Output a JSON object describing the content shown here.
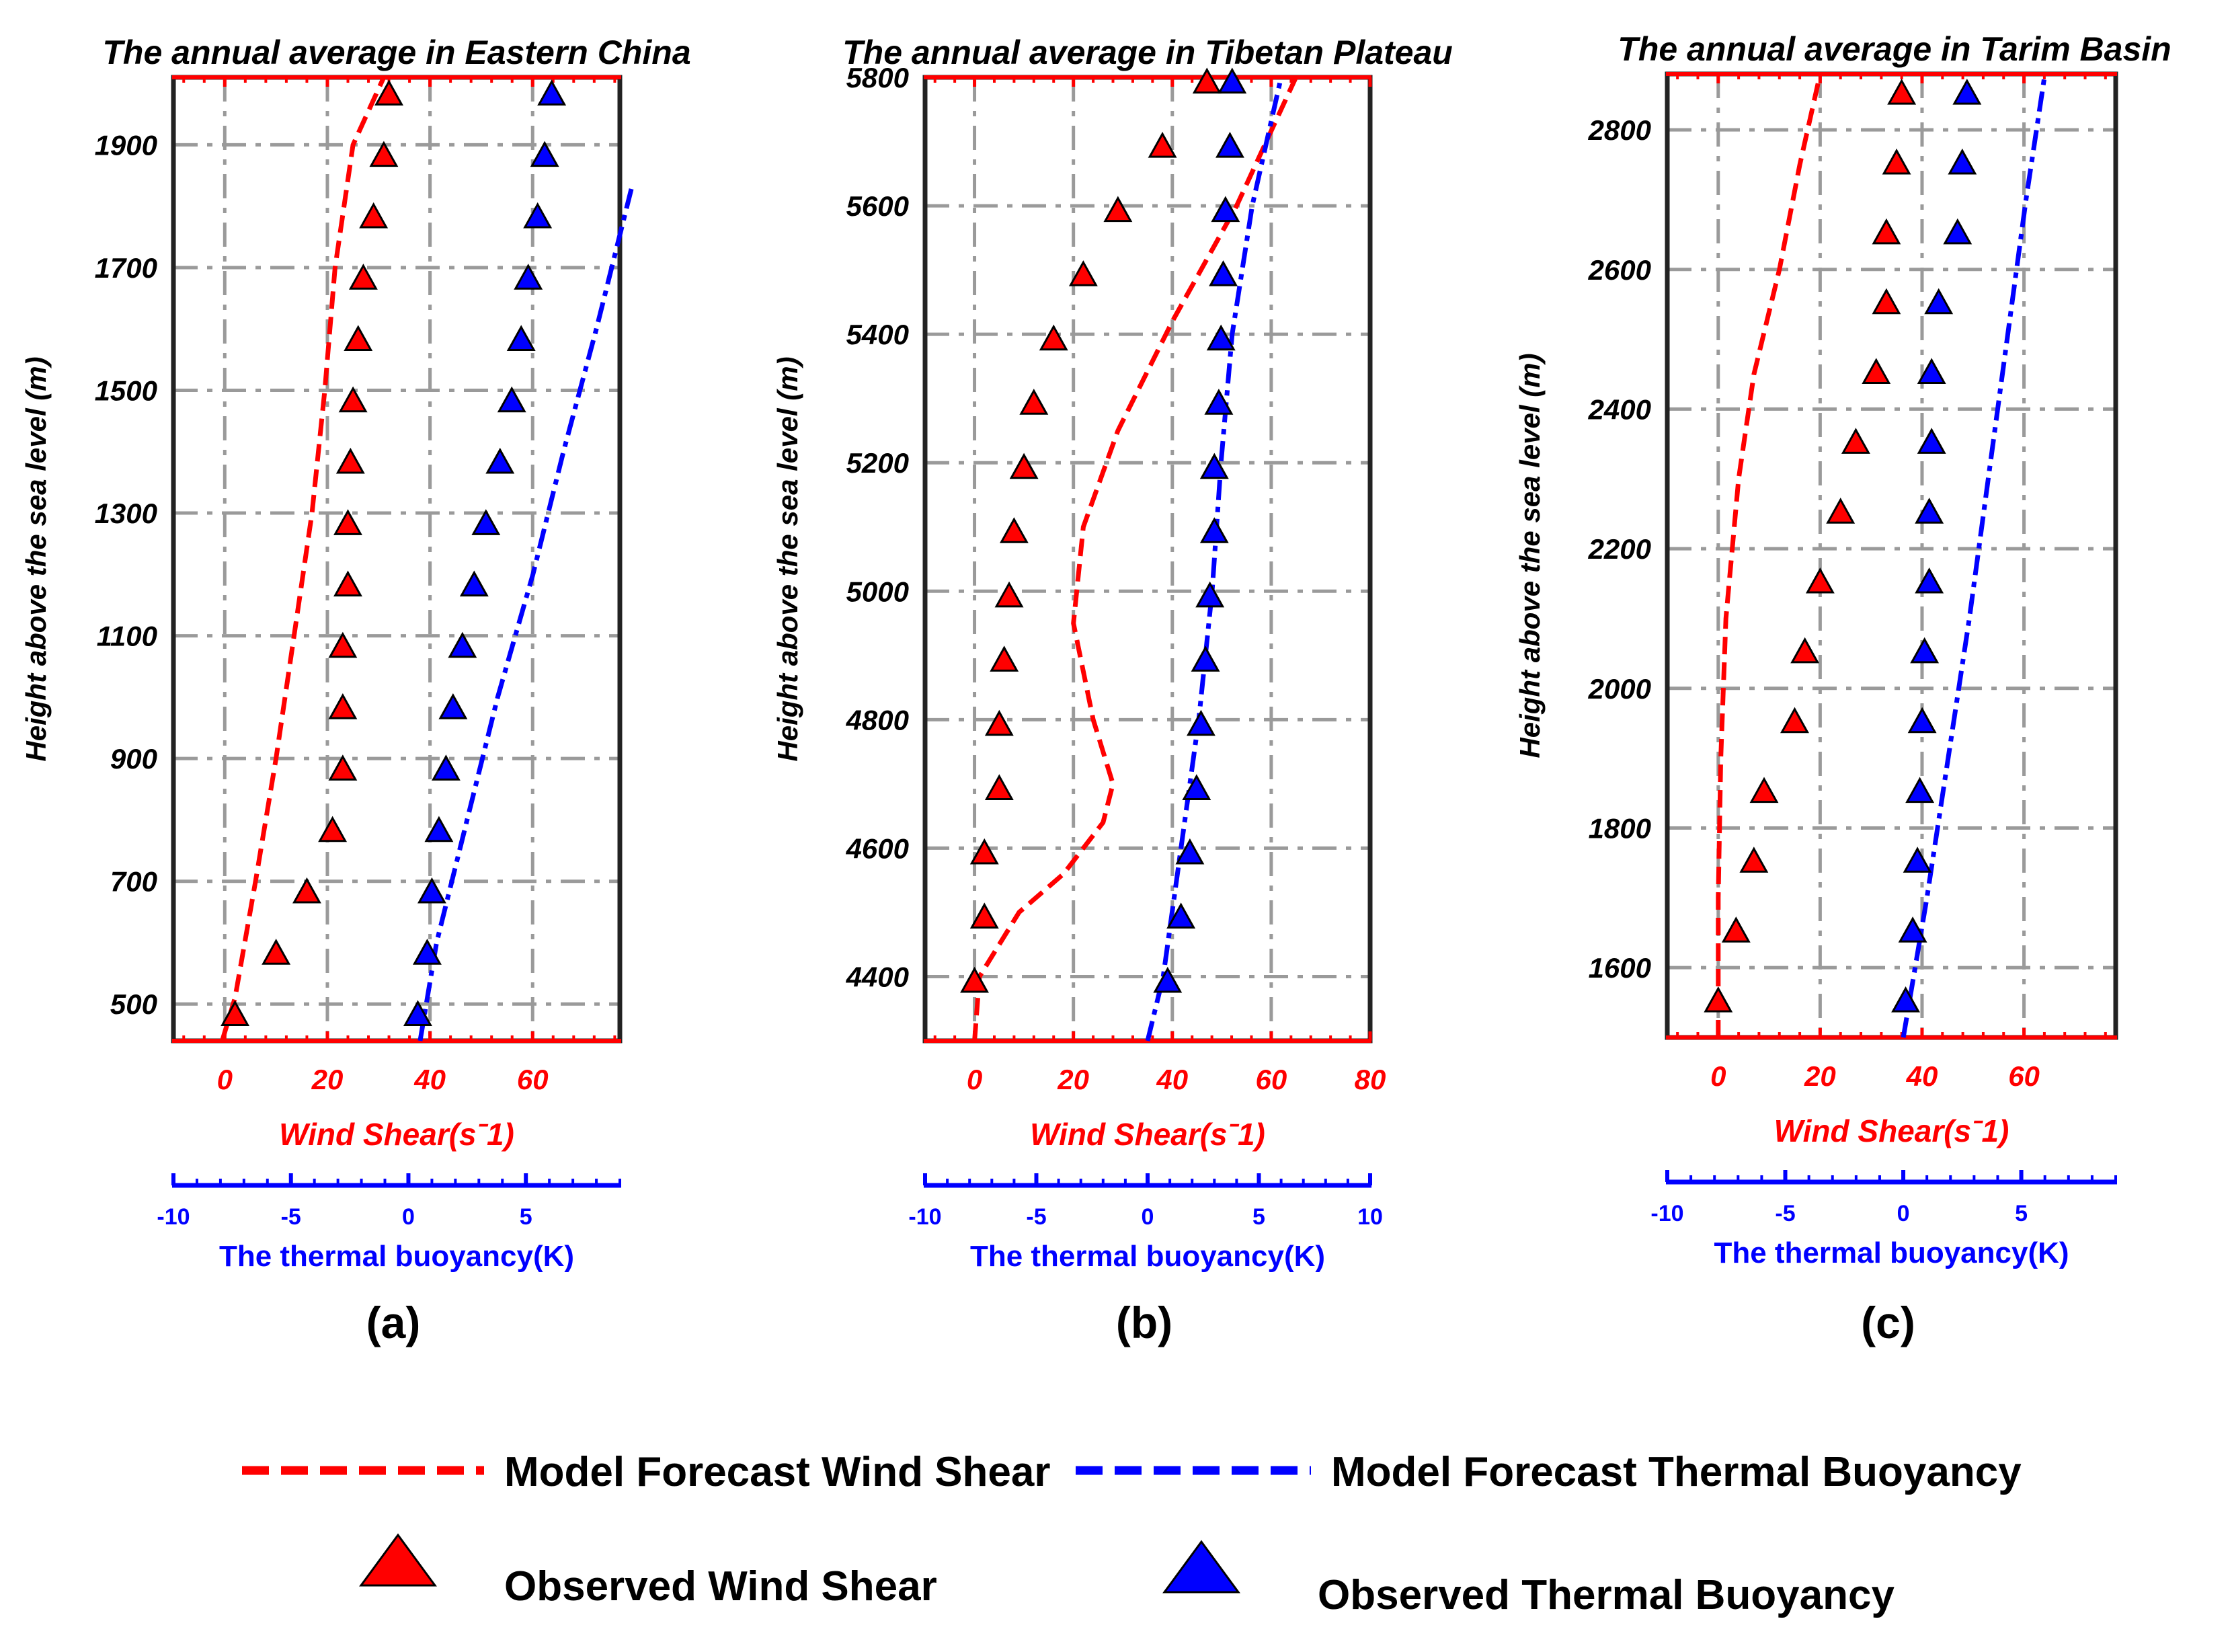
{
  "colors": {
    "wind": "#ff0000",
    "buoy": "#0000ff",
    "grid": "#9a9a9a",
    "frame": "#222222"
  },
  "chart_data": [
    {
      "type": "line",
      "panel_label": "(a)",
      "title": "The annual average in Eastern China",
      "ylabel": "Height above the sea level (m)",
      "xlabel": "Wind Shear(sˉ1)",
      "x2label": "The thermal buoyancy(K)",
      "ylim": [
        440,
        2010
      ],
      "yticks": [
        500,
        700,
        900,
        1100,
        1300,
        1500,
        1700,
        1900
      ],
      "xlim": [
        -10,
        77
      ],
      "xticks": [
        0,
        20,
        40,
        60
      ],
      "x2lim": [
        -10,
        9
      ],
      "x2ticks": [
        -10,
        -5,
        0,
        5
      ],
      "series": [
        {
          "name": "Model Forecast Wind Shear",
          "kind": "line",
          "axis": "wind",
          "points": [
            [
              -0.5,
              440
            ],
            [
              2,
              510
            ],
            [
              6,
              700
            ],
            [
              10,
              900
            ],
            [
              13.5,
              1100
            ],
            [
              17,
              1300
            ],
            [
              19.5,
              1500
            ],
            [
              21.5,
              1700
            ],
            [
              25,
              1900
            ],
            [
              31,
              2010
            ]
          ]
        },
        {
          "name": "Model Forecast Thermal Buoyancy",
          "kind": "line",
          "axis": "buoyancy",
          "points": [
            [
              0.5,
              440
            ],
            [
              1.2,
              600
            ],
            [
              2.5,
              800
            ],
            [
              3.8,
              1000
            ],
            [
              5.3,
              1200
            ],
            [
              6.6,
              1400
            ],
            [
              8,
              1600
            ],
            [
              9.5,
              1830
            ]
          ]
        },
        {
          "name": "Observed Wind Shear",
          "kind": "marker",
          "axis": "wind",
          "points": [
            [
              2,
              480
            ],
            [
              10,
              580
            ],
            [
              16,
              680
            ],
            [
              21,
              780
            ],
            [
              23,
              880
            ],
            [
              23,
              980
            ],
            [
              23,
              1080
            ],
            [
              24,
              1180
            ],
            [
              24,
              1280
            ],
            [
              24.5,
              1380
            ],
            [
              25,
              1480
            ],
            [
              26,
              1580
            ],
            [
              27,
              1680
            ],
            [
              29,
              1780
            ],
            [
              31,
              1880
            ],
            [
              32,
              1980
            ]
          ]
        },
        {
          "name": "Observed Thermal Buoyancy",
          "kind": "marker",
          "axis": "buoyancy",
          "points": [
            [
              0.4,
              480
            ],
            [
              0.8,
              580
            ],
            [
              1.0,
              680
            ],
            [
              1.3,
              780
            ],
            [
              1.6,
              880
            ],
            [
              1.9,
              980
            ],
            [
              2.3,
              1080
            ],
            [
              2.8,
              1180
            ],
            [
              3.3,
              1280
            ],
            [
              3.9,
              1380
            ],
            [
              4.4,
              1480
            ],
            [
              4.8,
              1580
            ],
            [
              5.1,
              1680
            ],
            [
              5.5,
              1780
            ],
            [
              5.8,
              1880
            ],
            [
              6.1,
              1980
            ]
          ]
        }
      ]
    },
    {
      "type": "line",
      "panel_label": "(b)",
      "title": "The annual average in Tibetan Plateau",
      "ylabel": "Height above the sea level (m)",
      "xlabel": "Wind Shear(sˉ1)",
      "x2label": "The thermal buoyancy(K)",
      "ylim": [
        4300,
        5800
      ],
      "yticks": [
        4400,
        4600,
        4800,
        5000,
        5200,
        5400,
        5600,
        5800
      ],
      "xlim": [
        -10,
        80
      ],
      "xticks": [
        0,
        20,
        40,
        60,
        80
      ],
      "x2lim": [
        -10,
        10
      ],
      "x2ticks": [
        -10,
        -5,
        0,
        5,
        10
      ],
      "series": [
        {
          "name": "Model Forecast Wind Shear",
          "kind": "line",
          "axis": "wind",
          "points": [
            [
              0,
              4300
            ],
            [
              1,
              4400
            ],
            [
              9,
              4500
            ],
            [
              18,
              4560
            ],
            [
              26,
              4640
            ],
            [
              28,
              4700
            ],
            [
              24,
              4800
            ],
            [
              20,
              4950
            ],
            [
              22,
              5100
            ],
            [
              29,
              5250
            ],
            [
              40,
              5420
            ],
            [
              53,
              5600
            ],
            [
              65,
              5800
            ]
          ]
        },
        {
          "name": "Model Forecast Thermal Buoyancy",
          "kind": "line",
          "axis": "buoyancy",
          "points": [
            [
              0,
              4300
            ],
            [
              0.7,
              4400
            ],
            [
              1.5,
              4600
            ],
            [
              2.3,
              4800
            ],
            [
              2.9,
              5000
            ],
            [
              3.3,
              5200
            ],
            [
              3.8,
              5400
            ],
            [
              4.7,
              5600
            ],
            [
              6,
              5800
            ]
          ]
        },
        {
          "name": "Observed Wind Shear",
          "kind": "marker",
          "axis": "wind",
          "points": [
            [
              0,
              4390
            ],
            [
              2,
              4490
            ],
            [
              2,
              4590
            ],
            [
              5,
              4690
            ],
            [
              5,
              4790
            ],
            [
              6,
              4890
            ],
            [
              7,
              4990
            ],
            [
              8,
              5090
            ],
            [
              10,
              5190
            ],
            [
              12,
              5290
            ],
            [
              16,
              5390
            ],
            [
              22,
              5490
            ],
            [
              29,
              5590
            ],
            [
              38,
              5690
            ],
            [
              47,
              5790
            ]
          ]
        },
        {
          "name": "Observed Thermal Buoyancy",
          "kind": "marker",
          "axis": "buoyancy",
          "points": [
            [
              0.9,
              4390
            ],
            [
              1.5,
              4490
            ],
            [
              1.9,
              4590
            ],
            [
              2.2,
              4690
            ],
            [
              2.4,
              4790
            ],
            [
              2.6,
              4890
            ],
            [
              2.8,
              4990
            ],
            [
              3,
              5090
            ],
            [
              3.0,
              5190
            ],
            [
              3.2,
              5290
            ],
            [
              3.3,
              5390
            ],
            [
              3.4,
              5490
            ],
            [
              3.5,
              5590
            ],
            [
              3.7,
              5690
            ],
            [
              3.8,
              5790
            ]
          ]
        }
      ]
    },
    {
      "type": "line",
      "panel_label": "(c)",
      "title": "The annual average in Tarim Basin",
      "ylabel": "Height above the sea level (m)",
      "xlabel": "Wind Shear(sˉ1)",
      "x2label": "The thermal buoyancy(K)",
      "ylim": [
        1500,
        2880
      ],
      "yticks": [
        1600,
        1800,
        2000,
        2200,
        2400,
        2600,
        2800
      ],
      "xlim": [
        -10,
        78
      ],
      "xticks": [
        0,
        20,
        40,
        60
      ],
      "x2lim": [
        -10,
        9
      ],
      "x2ticks": [
        -10,
        -5,
        0,
        5
      ],
      "series": [
        {
          "name": "Model Forecast Wind Shear",
          "kind": "line",
          "axis": "wind",
          "points": [
            [
              0,
              1500
            ],
            [
              0,
              1700
            ],
            [
              0.5,
              1900
            ],
            [
              1.5,
              2100
            ],
            [
              4,
              2300
            ],
            [
              7,
              2450
            ],
            [
              12,
              2600
            ],
            [
              16,
              2750
            ],
            [
              20,
              2880
            ]
          ]
        },
        {
          "name": "Model Forecast Thermal Buoyancy",
          "kind": "line",
          "axis": "buoyancy",
          "points": [
            [
              0,
              1500
            ],
            [
              1,
              1700
            ],
            [
              1.9,
              1900
            ],
            [
              2.8,
              2100
            ],
            [
              3.6,
              2300
            ],
            [
              4.4,
              2500
            ],
            [
              5.2,
              2700
            ],
            [
              6,
              2880
            ]
          ]
        },
        {
          "name": "Observed Wind Shear",
          "kind": "marker",
          "axis": "wind",
          "points": [
            [
              0,
              1550
            ],
            [
              3.5,
              1650
            ],
            [
              7,
              1750
            ],
            [
              9,
              1850
            ],
            [
              15,
              1950
            ],
            [
              17,
              2050
            ],
            [
              20,
              2150
            ],
            [
              24,
              2250
            ],
            [
              27,
              2350
            ],
            [
              31,
              2450
            ],
            [
              33,
              2550
            ],
            [
              33,
              2650
            ],
            [
              35,
              2750
            ],
            [
              36,
              2850
            ]
          ]
        },
        {
          "name": "Observed Thermal Buoyancy",
          "kind": "marker",
          "axis": "buoyancy",
          "points": [
            [
              0.1,
              1550
            ],
            [
              0.4,
              1650
            ],
            [
              0.6,
              1750
            ],
            [
              0.7,
              1850
            ],
            [
              0.8,
              1950
            ],
            [
              0.9,
              2050
            ],
            [
              1.1,
              2150
            ],
            [
              1.1,
              2250
            ],
            [
              1.2,
              2350
            ],
            [
              1.2,
              2450
            ],
            [
              1.5,
              2550
            ],
            [
              2.3,
              2650
            ],
            [
              2.5,
              2750
            ],
            [
              2.7,
              2850
            ]
          ]
        }
      ]
    }
  ],
  "legend": {
    "items": [
      {
        "label": "Model Forecast Wind Shear",
        "kind": "dashed-line",
        "color": "#ff0000"
      },
      {
        "label": "Model Forecast Thermal Buoyancy",
        "kind": "dashed-line",
        "color": "#0000ff"
      },
      {
        "label": "Observed Wind Shear",
        "kind": "triangle",
        "color": "#ff0000"
      },
      {
        "label": "Observed Thermal Buoyancy",
        "kind": "triangle",
        "color": "#0000ff"
      }
    ]
  }
}
